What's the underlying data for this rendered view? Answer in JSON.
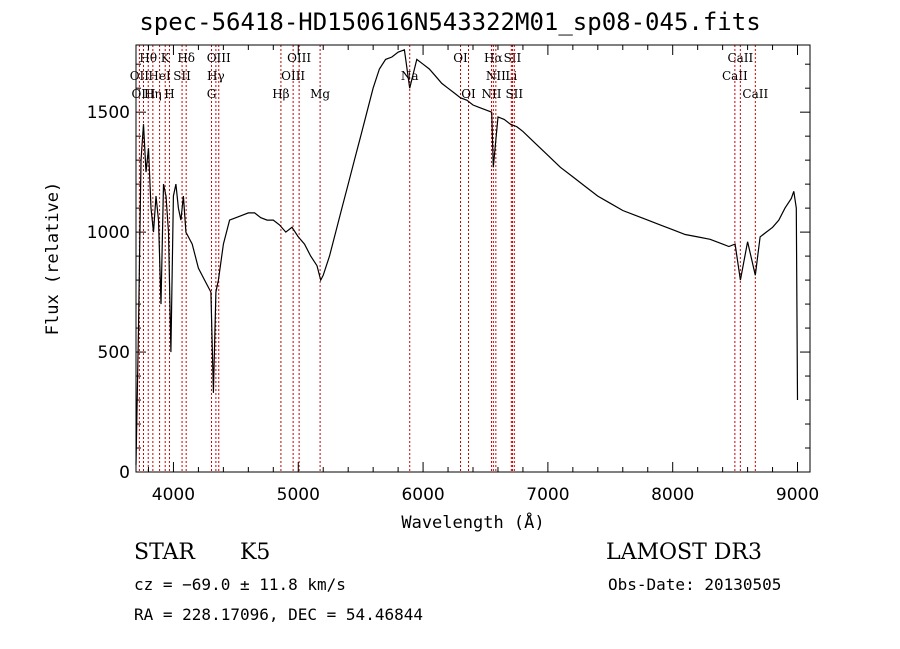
{
  "chart_data": {
    "type": "line",
    "title": "spec-56418-HD150616N543322M01_sp08-045.fits",
    "xlabel": "Wavelength (Å)",
    "ylabel": "Flux (relative)",
    "xlim": [
      3700,
      9100
    ],
    "ylim": [
      0,
      1780
    ],
    "xticks": [
      4000,
      5000,
      6000,
      7000,
      8000,
      9000
    ],
    "yticks": [
      0,
      500,
      1000,
      1500
    ],
    "grid": false,
    "line_color": "#000000",
    "marker_color": "#cc0000",
    "series": [
      {
        "x": [
          3700,
          3720,
          3740,
          3760,
          3780,
          3800,
          3820,
          3840,
          3860,
          3880,
          3900,
          3920,
          3940,
          3960,
          3980,
          4000,
          4020,
          4040,
          4060,
          4080,
          4100,
          4150,
          4200,
          4250,
          4300,
          4320,
          4340,
          4360,
          4400,
          4450,
          4500,
          4550,
          4600,
          4650,
          4700,
          4750,
          4800,
          4850,
          4900,
          4950,
          5000,
          5050,
          5100,
          5150,
          5180,
          5200,
          5250,
          5300,
          5350,
          5400,
          5450,
          5500,
          5550,
          5600,
          5650,
          5700,
          5750,
          5800,
          5850,
          5893,
          5950,
          6000,
          6050,
          6100,
          6150,
          6200,
          6250,
          6300,
          6350,
          6400,
          6450,
          6500,
          6550,
          6563,
          6600,
          6650,
          6700,
          6750,
          6800,
          6900,
          7000,
          7100,
          7200,
          7300,
          7400,
          7500,
          7600,
          7700,
          7800,
          7900,
          8000,
          8100,
          8200,
          8300,
          8400,
          8450,
          8500,
          8542,
          8600,
          8662,
          8700,
          8750,
          8800,
          8850,
          8900,
          8950,
          8970,
          8990,
          9000
        ],
        "y": [
          30,
          600,
          1300,
          1450,
          1250,
          1350,
          1100,
          1000,
          1150,
          1050,
          700,
          1200,
          1150,
          1000,
          500,
          1150,
          1200,
          1100,
          1050,
          1150,
          1000,
          950,
          850,
          800,
          750,
          330,
          750,
          800,
          950,
          1050,
          1060,
          1070,
          1080,
          1080,
          1060,
          1050,
          1050,
          1030,
          1000,
          1020,
          980,
          950,
          900,
          860,
          800,
          820,
          900,
          1000,
          1100,
          1200,
          1300,
          1400,
          1500,
          1600,
          1680,
          1720,
          1730,
          1750,
          1760,
          1600,
          1720,
          1700,
          1680,
          1650,
          1620,
          1600,
          1580,
          1560,
          1550,
          1530,
          1520,
          1510,
          1500,
          1270,
          1480,
          1470,
          1450,
          1440,
          1420,
          1370,
          1320,
          1270,
          1230,
          1190,
          1150,
          1120,
          1090,
          1070,
          1050,
          1030,
          1010,
          990,
          980,
          970,
          950,
          940,
          950,
          800,
          960,
          820,
          980,
          1000,
          1020,
          1050,
          1100,
          1140,
          1170,
          1100,
          300
        ]
      }
    ],
    "lines": [
      {
        "label": "OII",
        "wl": 3727,
        "row": 1
      },
      {
        "label": "OIII",
        "wl": 3760,
        "row": 2
      },
      {
        "label": "Hθ",
        "wl": 3798,
        "row": 0
      },
      {
        "label": "Hη",
        "wl": 3835,
        "row": 2
      },
      {
        "label": "HeI",
        "wl": 3889,
        "row": 1
      },
      {
        "label": "K",
        "wl": 3934,
        "row": 0
      },
      {
        "label": "H",
        "wl": 3968,
        "row": 2
      },
      {
        "label": "SII",
        "wl": 4069,
        "row": 1
      },
      {
        "label": "Hδ",
        "wl": 4102,
        "row": 0
      },
      {
        "label": "G",
        "wl": 4305,
        "row": 2
      },
      {
        "label": "Hγ",
        "wl": 4340,
        "row": 1
      },
      {
        "label": "OIII",
        "wl": 4363,
        "row": 0
      },
      {
        "label": "Hβ",
        "wl": 4861,
        "row": 2
      },
      {
        "label": "OIII",
        "wl": 4959,
        "row": 1
      },
      {
        "label": "OIII",
        "wl": 5007,
        "row": 0
      },
      {
        "label": "Mg",
        "wl": 5175,
        "row": 2
      },
      {
        "label": "Na",
        "wl": 5893,
        "row": 1
      },
      {
        "label": "OI",
        "wl": 6300,
        "row": 0
      },
      {
        "label": "OI",
        "wl": 6364,
        "row": 2
      },
      {
        "label": "NII",
        "wl": 6548,
        "row": 2
      },
      {
        "label": "Hα",
        "wl": 6563,
        "row": 0
      },
      {
        "label": "NII",
        "wl": 6583,
        "row": 1
      },
      {
        "label": "Li",
        "wl": 6707,
        "row": 1
      },
      {
        "label": "SII",
        "wl": 6716,
        "row": 0
      },
      {
        "label": "SII",
        "wl": 6731,
        "row": 2
      },
      {
        "label": "CaII",
        "wl": 8498,
        "row": 1
      },
      {
        "label": "CaII",
        "wl": 8542,
        "row": 0
      },
      {
        "label": "CaII",
        "wl": 8662,
        "row": 2
      }
    ]
  },
  "info": {
    "object_class": "STAR",
    "subclass": "K5",
    "survey": "LAMOST DR3",
    "cz": "cz = −69.0 ± 11.8 km/s",
    "obs_date": "Obs-Date: 20130505",
    "coords": "RA = 228.17096, DEC =  54.46844"
  }
}
